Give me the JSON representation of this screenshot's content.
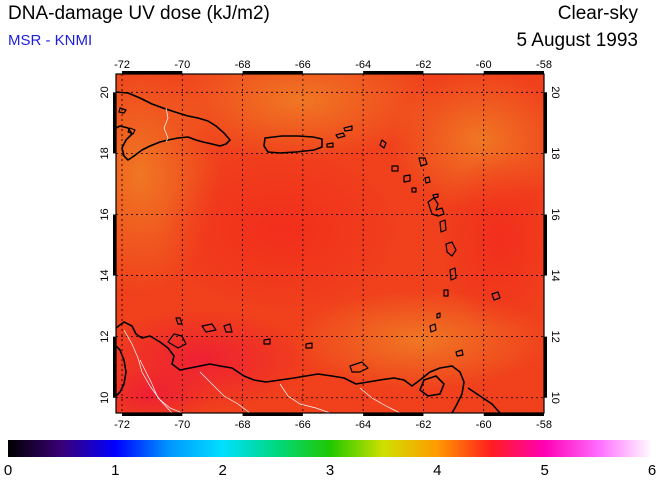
{
  "header": {
    "title": "DNA-damage UV dose (kJ/m2)",
    "credit": "MSR - KNMI",
    "sky_type": "Clear-sky",
    "date": "5 August 1993"
  },
  "map": {
    "lon_range": [
      -72.2,
      -58
    ],
    "lat_range": [
      9.5,
      20.6
    ],
    "lon_ticks": [
      -72,
      -70,
      -68,
      -66,
      -64,
      -62,
      -60,
      -58
    ],
    "lat_ticks": [
      10,
      12,
      14,
      16,
      18,
      20
    ],
    "lon_tick_labels": [
      "-72",
      "-70",
      "-68",
      "-66",
      "-64",
      "-62",
      "-60",
      "-58"
    ],
    "lat_tick_labels": [
      "10",
      "12",
      "14",
      "16",
      "18",
      "20"
    ],
    "gridlines": "dotted",
    "field_color": "#f0401c",
    "field_highlight_color": "#f06a22",
    "field_hot_color": "#ee1838",
    "coastline_color": "#000000",
    "border_color": "#ffffff"
  },
  "colorbar": {
    "range": [
      0,
      6
    ],
    "tick_values": [
      0,
      1,
      2,
      3,
      4,
      5,
      6
    ],
    "tick_labels": [
      "0",
      "1",
      "2",
      "3",
      "4",
      "5",
      "6"
    ],
    "stops": [
      {
        "v": 0,
        "c": "#000000"
      },
      {
        "v": 0.5,
        "c": "#3a0078"
      },
      {
        "v": 1,
        "c": "#0000ff"
      },
      {
        "v": 1.5,
        "c": "#0096ff"
      },
      {
        "v": 2,
        "c": "#00e0ff"
      },
      {
        "v": 2.5,
        "c": "#00d880"
      },
      {
        "v": 3,
        "c": "#20c800"
      },
      {
        "v": 3.5,
        "c": "#d0e000"
      },
      {
        "v": 4,
        "c": "#ff9a00"
      },
      {
        "v": 4.5,
        "c": "#ff1e1e"
      },
      {
        "v": 5,
        "c": "#ff00b4"
      },
      {
        "v": 5.5,
        "c": "#ff6cff"
      },
      {
        "v": 6,
        "c": "#ffffff"
      }
    ]
  }
}
